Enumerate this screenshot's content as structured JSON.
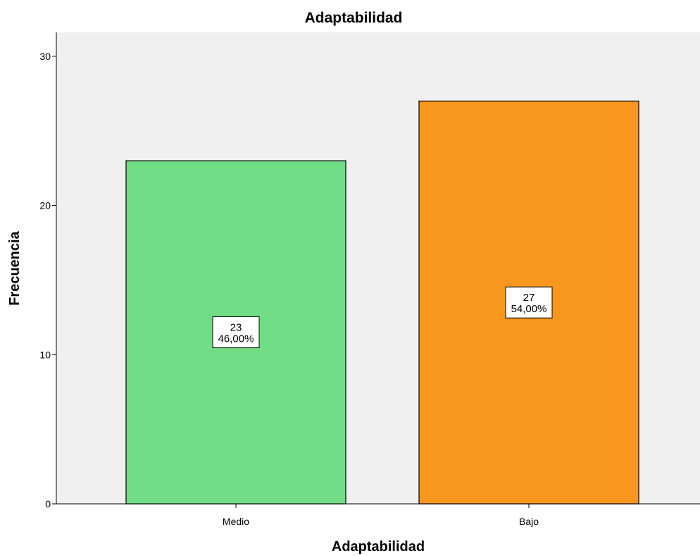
{
  "chart_data": {
    "type": "bar",
    "title": "Adaptabilidad",
    "xlabel": "Adaptabilidad",
    "ylabel": "Frecuencia",
    "categories": [
      "Medio",
      "Bajo"
    ],
    "values": [
      23,
      27
    ],
    "percent_labels": [
      "46,00%",
      "54,00%"
    ],
    "colors": [
      "#70dc85",
      "#f7971d"
    ],
    "plot_background": "#f0f0f0",
    "ylim": [
      0,
      31.6
    ],
    "yticks": [
      0,
      10,
      20,
      30
    ],
    "grid": false,
    "legend": "none"
  }
}
